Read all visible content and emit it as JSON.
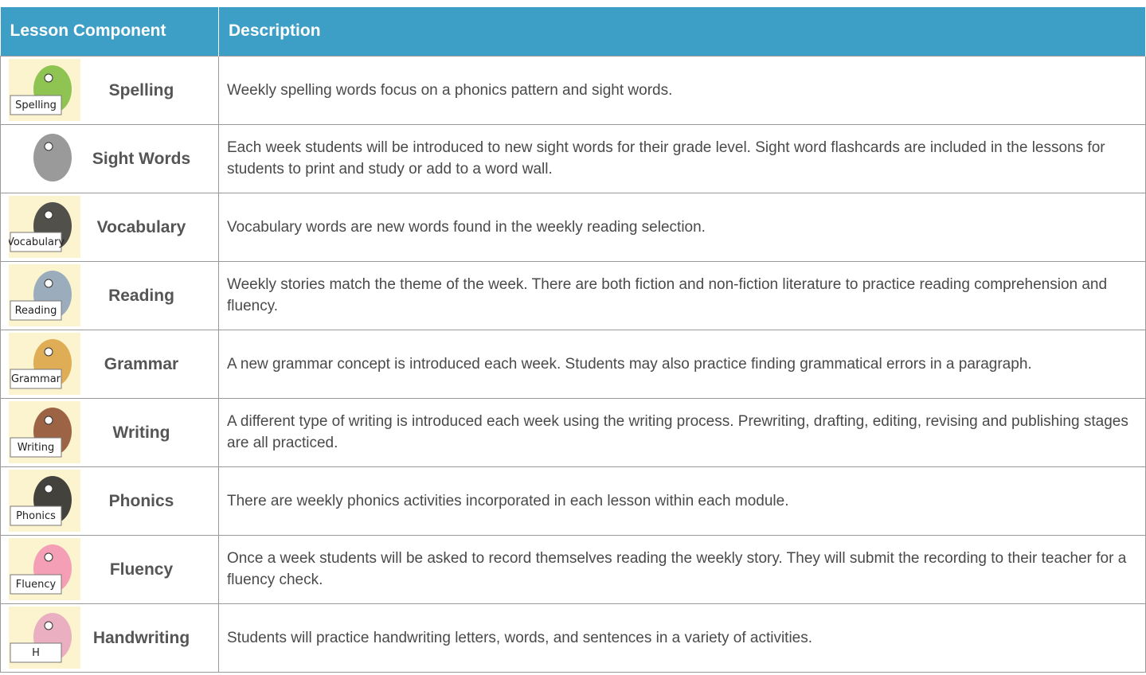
{
  "table": {
    "header": [
      "Lesson Component",
      "Description"
    ],
    "rows": [
      {
        "component": "Spelling",
        "icon_label": "Spelling",
        "description": "Weekly spelling words focus on a phonics pattern and sight words."
      },
      {
        "component": "Sight Words",
        "description": "Each week students will be introduced to new sight words for their grade level. Sight word flashcards are included in the lessons for students to print and study or add to a word wall."
      },
      {
        "component": "Vocabulary",
        "icon_label": "Vocabulary",
        "description": "Vocabulary words are new words found in the weekly reading selection."
      },
      {
        "component": "Reading",
        "icon_label": "Reading",
        "description": "Weekly stories match the theme of the week. There are both fiction and non-fiction literature to practice reading comprehension and fluency."
      },
      {
        "component": "Grammar",
        "icon_label": "Grammar",
        "description": "A new grammar concept is introduced each week. Students may also practice finding grammatical errors in a paragraph."
      },
      {
        "component": "Writing",
        "icon_label": "Writing",
        "description": "A different type of writing is introduced each week using the writing process. Prewriting, drafting, editing, revising and publishing stages are all practiced."
      },
      {
        "component": "Phonics",
        "icon_label": "Phonics",
        "description": "There are weekly phonics activities incorporated in each lesson within each module."
      },
      {
        "component": "Fluency",
        "icon_label": "Fluency",
        "description": "Once a week students will be asked to record themselves reading the weekly story. They will submit the recording to their teacher for a fluency check."
      },
      {
        "component": "Handwriting",
        "icon_label": "H",
        "description": "Students will practice handwriting letters, words, and sentences in a variety of activities."
      }
    ]
  }
}
